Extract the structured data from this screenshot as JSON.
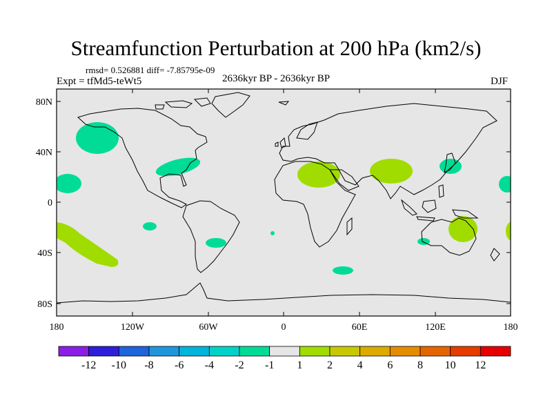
{
  "header": {
    "title": "Streamfunction Perturbation at 200 hPa (km2/s)",
    "stats": "rmsd= 0.526881 diff= -7.85795e-09",
    "experiment": "Expt = tfMd5-teWt5",
    "period": "2636kyr BP - 2636kyr BP",
    "season": "DJF"
  },
  "axes": {
    "y_ticks": [
      "80N",
      "40N",
      "0",
      "40S",
      "80S"
    ],
    "x_ticks": [
      "180",
      "120W",
      "60W",
      "0",
      "60E",
      "120E",
      "180"
    ]
  },
  "colorbar": {
    "colors": [
      "#8a1ee6",
      "#2d1edc",
      "#1e64dc",
      "#1e96dc",
      "#00b4dc",
      "#00d2c8",
      "#00dc96",
      "#e6e6e6",
      "#a0dc00",
      "#c8c800",
      "#dcaa00",
      "#e68c00",
      "#e66400",
      "#e63c00",
      "#e60000"
    ],
    "labels": [
      "-12",
      "-10",
      "-8",
      "-6",
      "-4",
      "-2",
      "-1",
      "1",
      "2",
      "4",
      "6",
      "8",
      "10",
      "12"
    ]
  },
  "chart_data": {
    "type": "heatmap",
    "title": "Streamfunction Perturbation at 200 hPa (km2/s)",
    "projection": "cylindrical equidistant",
    "xlim": [
      -180,
      180
    ],
    "ylim": [
      -90,
      90
    ],
    "levels": [
      -12,
      -10,
      -8,
      -6,
      -4,
      -2,
      -1,
      1,
      2,
      4,
      6,
      8,
      10,
      12
    ],
    "anomalies": [
      {
        "region": "Gulf of Alaska",
        "lon": -145,
        "lat": 53,
        "class": "-2 to -1"
      },
      {
        "region": "Eastern USA",
        "lon": -85,
        "lat": 31,
        "class": "-2 to -1"
      },
      {
        "region": "Central Pacific north",
        "lon": -173,
        "lat": 17,
        "class": "-2 to -1"
      },
      {
        "region": "Eastern Pacific south",
        "lon": -117,
        "lat": -18,
        "class": "-2 to -1"
      },
      {
        "region": "South America east",
        "lon": -55,
        "lat": -32,
        "class": "-2 to -1"
      },
      {
        "region": "South Atlantic",
        "lon": -9,
        "lat": -25,
        "class": "-2 to -1"
      },
      {
        "region": "Southern Indian Ocean",
        "lon": 47,
        "lat": -53,
        "class": "-2 to -1"
      },
      {
        "region": "Japan",
        "lon": 132,
        "lat": 31,
        "class": "-2 to -1"
      },
      {
        "region": "Western Australia coast",
        "lon": 112,
        "lat": -30,
        "class": "-2 to -1"
      },
      {
        "region": "Western Pacific edge",
        "lon": 177,
        "lat": 16,
        "class": "-2 to -1"
      },
      {
        "region": "North Africa / Mediterranean",
        "lon": 29,
        "lat": 24,
        "class": "1 to 2"
      },
      {
        "region": "Tibet / South Asia",
        "lon": 86,
        "lat": 22,
        "class": "1 to 2"
      },
      {
        "region": "Eastern Australia",
        "lon": 141,
        "lat": -29,
        "class": "1 to 2"
      },
      {
        "region": "South Pacific band",
        "lon": -160,
        "lat": -35,
        "class": "1 to 2"
      },
      {
        "region": "Southwest Pacific edge",
        "lon": 178,
        "lat": -28,
        "class": "1 to 2"
      }
    ]
  }
}
